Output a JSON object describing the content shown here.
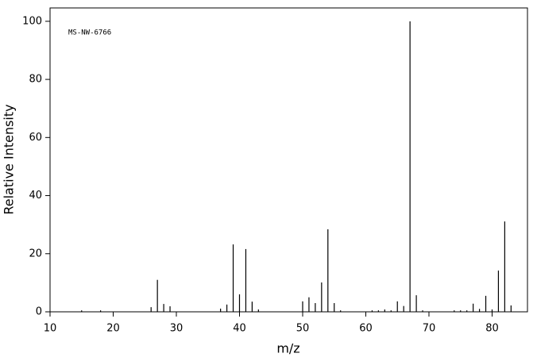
{
  "chart_data": {
    "type": "stick",
    "annotation": "MS-NW-6766",
    "x_label": "m/z",
    "y_label": "Relative Intensity",
    "x": [
      15,
      18,
      26,
      27,
      28,
      29,
      37,
      38,
      39,
      40,
      41,
      42,
      43,
      50,
      51,
      52,
      53,
      54,
      55,
      56,
      61,
      62,
      63,
      64,
      65,
      66,
      67,
      68,
      69,
      74,
      75,
      76,
      77,
      78,
      79,
      80,
      81,
      82,
      83
    ],
    "values": [
      0.5,
      0.5,
      1.6,
      11,
      2.7,
      1.9,
      1.1,
      2.5,
      23.2,
      6,
      21.6,
      3.5,
      0.8,
      3.6,
      5,
      3,
      10.1,
      28.4,
      3,
      0.5,
      0.5,
      0.5,
      0.8,
      0.5,
      3.6,
      2,
      100,
      5.7,
      0.5,
      0.5,
      0.5,
      0.5,
      2.8,
      1,
      5.5,
      0.8,
      14.2,
      31.1,
      2.2
    ],
    "color": "#000000",
    "xlim": [
      10,
      85.6
    ],
    "ylim": [
      0,
      104.6
    ],
    "xticks": [
      10,
      20,
      30,
      40,
      50,
      60,
      70,
      80
    ],
    "yticks": [
      0,
      20,
      40,
      60,
      80,
      100
    ]
  }
}
